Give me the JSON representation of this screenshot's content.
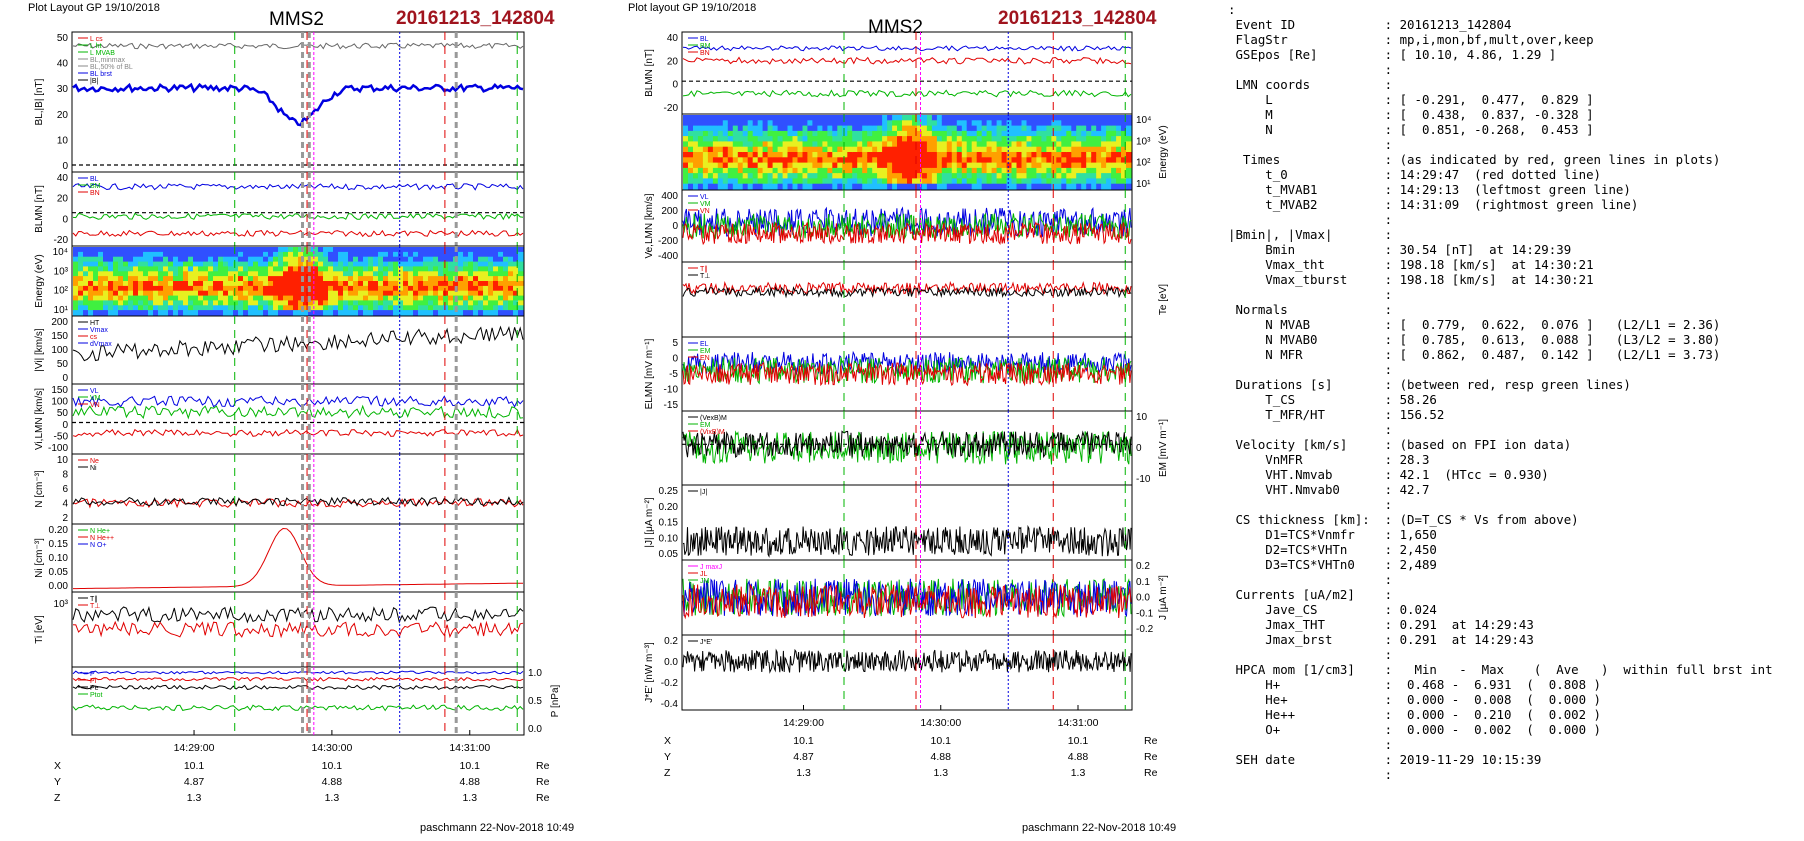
{
  "left": {
    "header_left": "Plot Layout GP 19/10/2018",
    "title": "MMS2",
    "event": "20161213_142804",
    "footer": "paschmann 22-Nov-2018 10:49",
    "time_ticks": [
      "14:29:00",
      "14:30:00",
      "14:31:00"
    ],
    "coords": [
      {
        "label": "X",
        "values": [
          "10.1",
          "10.1",
          "10.1"
        ],
        "unit": "Re"
      },
      {
        "label": "Y",
        "values": [
          "4.87",
          "4.88",
          "4.88"
        ],
        "unit": "Re"
      },
      {
        "label": "Z",
        "values": [
          "1.3",
          "1.3",
          "1.3"
        ],
        "unit": "Re"
      }
    ],
    "panels": [
      {
        "ylabel": "BL,|B| [nT]",
        "ticks": [
          "50",
          "40",
          "30",
          "20",
          "10",
          "0"
        ],
        "legend": [
          "L cs",
          "L ht",
          "L MVAB",
          "BL,minmax",
          "BL,50% of BL",
          "BL brst",
          "|B|"
        ]
      },
      {
        "ylabel": "BLMN [nT]",
        "ticks": [
          "40",
          "20",
          "0",
          "-20"
        ],
        "legend": [
          "BL",
          "BM",
          "BN"
        ]
      },
      {
        "ylabel": "Energy (eV)",
        "ticks": [
          "10⁴",
          "10³",
          "10²",
          "10¹"
        ],
        "legend": []
      },
      {
        "ylabel": "|Vi| [km/s]",
        "ticks": [
          "200",
          "150",
          "100",
          "50",
          "0"
        ],
        "legend": [
          "HT",
          "Vmax",
          "cs",
          "dVmax"
        ]
      },
      {
        "ylabel": "Vi,LMN [km/s]",
        "ticks": [
          "150",
          "100",
          "50",
          "0",
          "-50",
          "-100"
        ],
        "legend": [
          "VL",
          "VM",
          "VN"
        ]
      },
      {
        "ylabel": "N [cm⁻³]",
        "ticks": [
          "10",
          "8",
          "6",
          "4",
          "2"
        ],
        "legend": [
          "Ne",
          "Ni"
        ]
      },
      {
        "ylabel": "Ni [cm⁻³]",
        "ticks": [
          "0.20",
          "0.15",
          "0.10",
          "0.05",
          "0.00"
        ],
        "legend": [
          "N He+",
          "N He++",
          "N O+"
        ]
      },
      {
        "ylabel": "Ti [eV]",
        "ticks": [
          "10³"
        ],
        "legend": [
          "T∥",
          "T⊥"
        ]
      },
      {
        "ylabel": "P [nPa]",
        "ticks": [
          "1.0",
          "0.5",
          "0.0"
        ],
        "legend": [
          "P",
          "Pi",
          "Pe",
          "Ptot"
        ]
      }
    ]
  },
  "middle": {
    "header_left": "Plot layout GP 19/10/2018",
    "title": "MMS2",
    "event": "20161213_142804",
    "footer": "paschmann 22-Nov-2018 10:49",
    "time_ticks": [
      "14:29:00",
      "14:30:00",
      "14:31:00"
    ],
    "coords": [
      {
        "label": "X",
        "values": [
          "10.1",
          "10.1",
          "10.1"
        ],
        "unit": "Re"
      },
      {
        "label": "Y",
        "values": [
          "4.87",
          "4.88",
          "4.88"
        ],
        "unit": "Re"
      },
      {
        "label": "Z",
        "values": [
          "1.3",
          "1.3",
          "1.3"
        ],
        "unit": "Re"
      }
    ],
    "panels": [
      {
        "ylabel": "BLMN [nT]",
        "ticks": [
          "40",
          "20",
          "0",
          "-20"
        ],
        "legend": [
          "BL",
          "BM",
          "BN"
        ]
      },
      {
        "ylabel": "Energy (eV)",
        "ticks": [
          "10⁴",
          "10³",
          "10²",
          "10¹"
        ],
        "legend": []
      },
      {
        "ylabel": "Ve,LMN [km/s]",
        "ticks": [
          "400",
          "200",
          "0",
          "-200",
          "-400"
        ],
        "legend": [
          "VL",
          "VM",
          "VN"
        ]
      },
      {
        "ylabel": "Te [eV]",
        "ticks": [],
        "legend": [
          "T∥",
          "T⊥"
        ]
      },
      {
        "ylabel": "ELMN [mV m⁻¹]",
        "ticks": [
          "5",
          "0",
          "-5",
          "-10",
          "-15"
        ],
        "legend": [
          "EL",
          "EM",
          "EN"
        ]
      },
      {
        "ylabel": "EM [mV m⁻¹]",
        "ticks": [
          "10",
          "0",
          "-10"
        ],
        "legend": [
          "(VexB)M",
          "EM",
          "(VixB)M"
        ]
      },
      {
        "ylabel": "|J| [μA m⁻²]",
        "ticks": [
          "0.25",
          "0.20",
          "0.15",
          "0.10",
          "0.05"
        ],
        "legend": [
          "|J|"
        ]
      },
      {
        "ylabel": "J [μA m⁻²]",
        "ticks": [
          "0.2",
          "0.1",
          "0.0",
          "-0.1",
          "-0.2"
        ],
        "legend": [
          "J maxJ",
          "JL",
          "JM"
        ]
      },
      {
        "ylabel": "J*E' [nW m⁻³]",
        "ticks": [
          "0.2",
          "0.0",
          "-0.2",
          "-0.4"
        ],
        "legend": [
          "J*E'"
        ]
      }
    ]
  },
  "info": [
    ":",
    " Event ID            : 20161213_142804",
    " FlagStr             : mp,i,mon,bf,mult,over,keep",
    " GSEpos [Re]         : [ 10.10, 4.86, 1.29 ]",
    "                     :",
    " LMN coords          :",
    "     L               : [ -0.291,  0.477,  0.829 ]",
    "     M               : [  0.438,  0.837, -0.328 ]",
    "     N               : [  0.851, -0.268,  0.453 ]",
    "                     :",
    "  Times              : (as indicated by red, green lines in plots)",
    "     t_0             : 14:29:47  (red dotted line)",
    "     t_MVAB1         : 14:29:13  (leftmost green line)",
    "     t_MVAB2         : 14:31:09  (rightmost green line)",
    "                     :",
    "|Bmin|, |Vmax|       :",
    "     Bmin            : 30.54 [nT]  at 14:29:39",
    "     Vmax_tht        : 198.18 [km/s]  at 14:30:21",
    "     Vmax_tburst     : 198.18 [km/s]  at 14:30:21",
    "                     :",
    " Normals             :",
    "     N MVAB          : [  0.779,  0.622,  0.076 ]   (L2/L1 = 2.36)",
    "     N MVAB0         : [  0.785,  0.613,  0.088 ]   (L3/L2 = 3.80)",
    "     N MFR           : [  0.862,  0.487,  0.142 ]   (L2/L1 = 3.73)",
    "                     :",
    " Durations [s]       : (between red, resp green lines)",
    "     T_CS            : 58.26",
    "     T_MFR/HT        : 156.52",
    "                     :",
    " Velocity [km/s]     : (based on FPI ion data)",
    "     VnMFR           : 28.3",
    "     VHT.Nmvab       : 42.1  (HTcc = 0.930)",
    "     VHT.Nmvab0      : 42.7",
    "                     :",
    " CS thickness [km]:  : (D=T_CS * Vs from above)",
    "     D1=TCS*Vnmfr    : 1,650",
    "     D2=TCS*VHTn     : 2,450",
    "     D3=TCS*VHTn0    : 2,489",
    "                     :",
    " Currents [uA/m2]    :",
    "     Jave_CS         : 0.024",
    "     Jmax_THT        : 0.291  at 14:29:43",
    "     Jmax_brst       : 0.291  at 14:29:43",
    "                     :",
    " HPCA mom [1/cm3]    :   Min   -  Max    (  Ave   )  within full brst int",
    "     H+              :  0.468 -  6.931  (  0.808 )",
    "     He+             :  0.000 -  0.008  (  0.000 )",
    "     He++            :  0.000 -  0.210  (  0.002 )",
    "     O+              :  0.000 -  0.002  (  0.000 )",
    "                     :",
    " SEH date            : 2019-11-29 10:15:39",
    "                     :"
  ],
  "colors": {
    "event": "#a0141e",
    "red": "#e00000",
    "green": "#00b400",
    "blue": "#0000e0",
    "magenta": "#ff00ff"
  }
}
